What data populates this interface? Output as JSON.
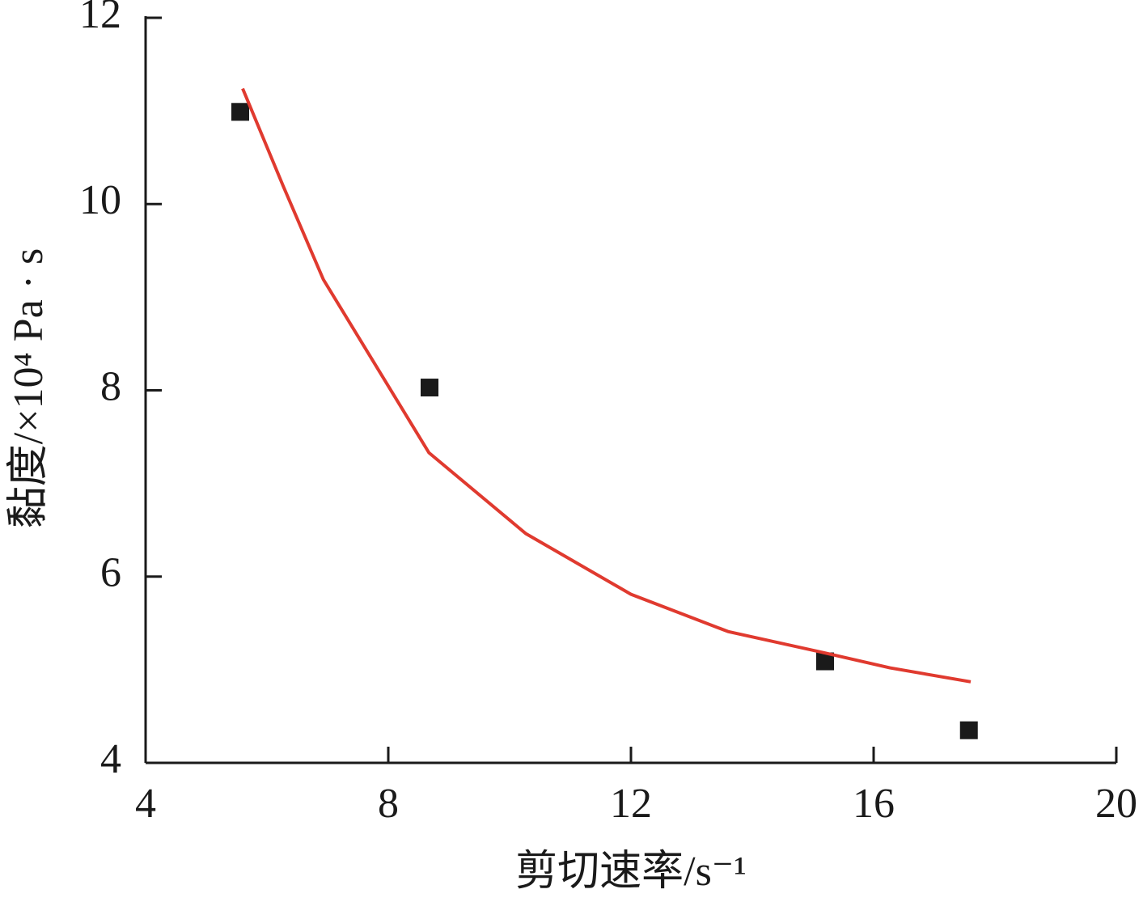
{
  "chart_data": {
    "type": "scatter",
    "x_label": "剪切速率/s⁻¹",
    "y_label": "黏度/×10⁴ Pa · s",
    "series": [
      {
        "type": "scatter",
        "color": "#1a1a1a",
        "x": [
          5.56,
          8.68,
          15.2,
          17.57
        ],
        "values": [
          10.99,
          8.03,
          5.09,
          4.35
        ]
      },
      {
        "type": "line",
        "color": "#e03a2f",
        "x": [
          5.6,
          6.27,
          6.93,
          8.67,
          10.27,
          12,
          13.6,
          15.2,
          16.27,
          17.6
        ],
        "values": [
          11.24,
          10.19,
          9.19,
          7.33,
          6.46,
          5.81,
          5.41,
          5.18,
          5.02,
          4.87
        ]
      }
    ],
    "xlim": [
      4,
      20
    ],
    "xticks": [
      4,
      8,
      12,
      16,
      20
    ],
    "ylim": [
      4,
      12
    ],
    "yticks": [
      4,
      6,
      8,
      10,
      12
    ]
  }
}
